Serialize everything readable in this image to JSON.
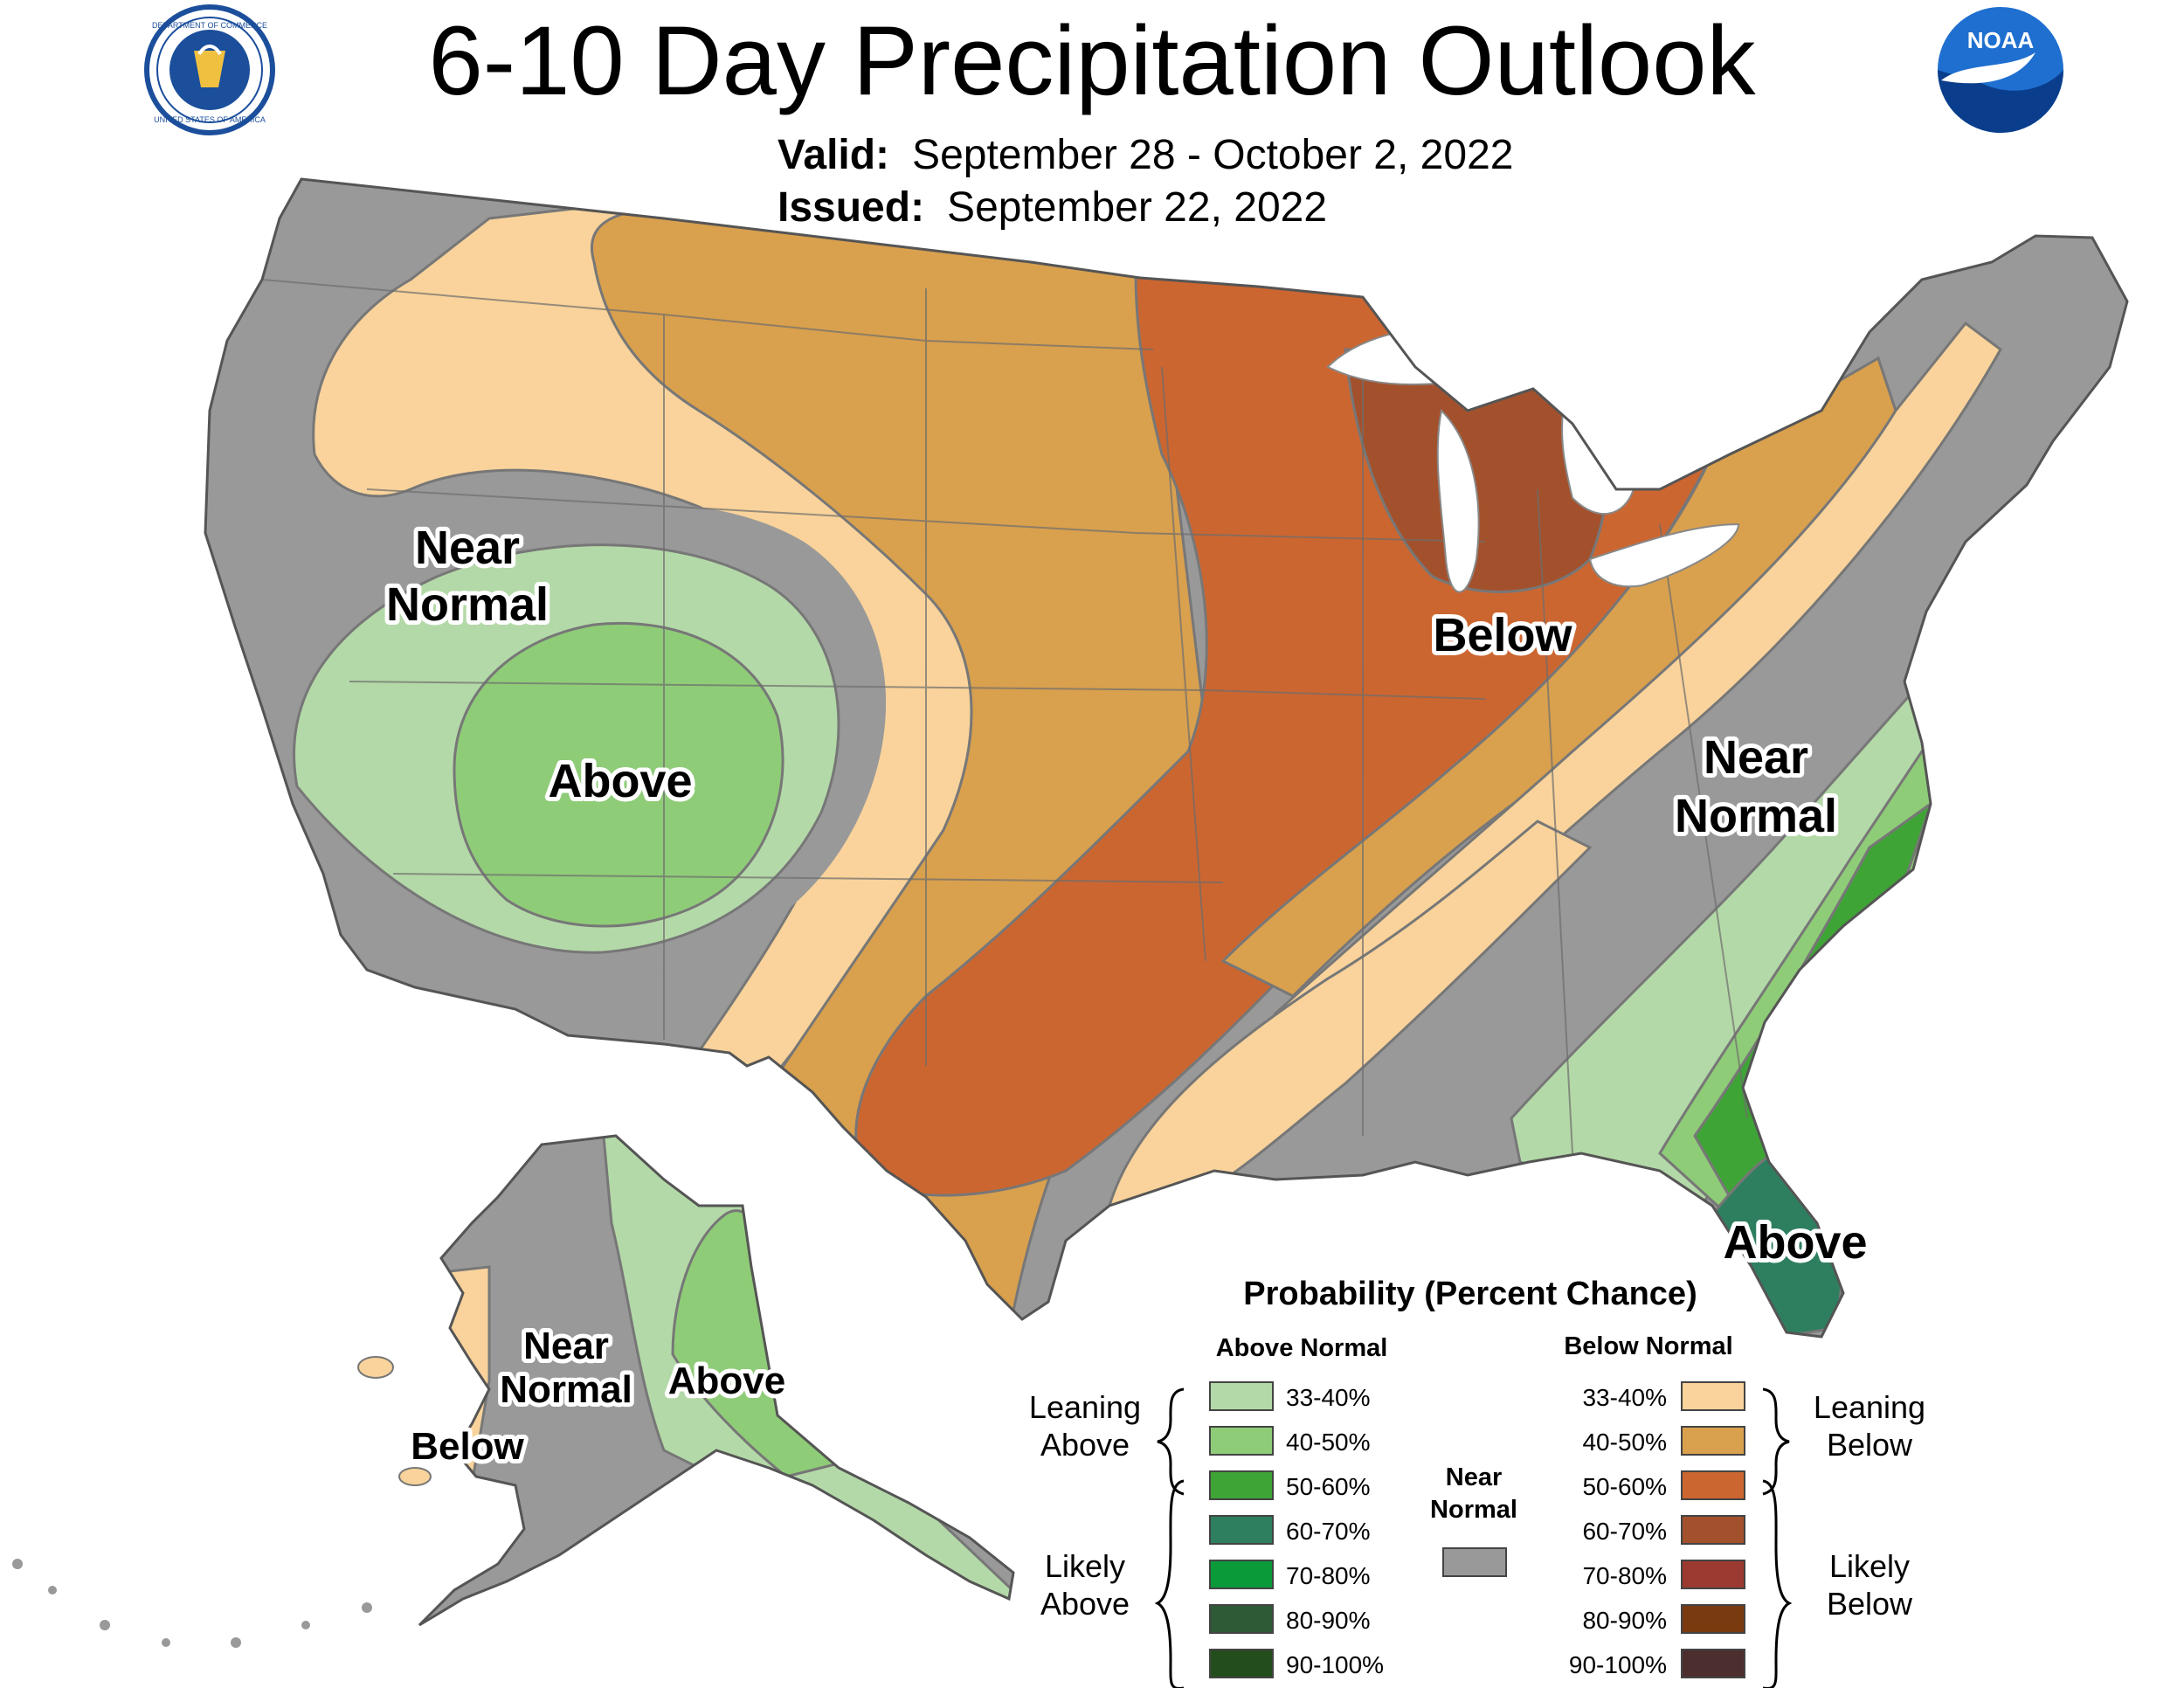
{
  "title": "6-10 Day Precipitation Outlook",
  "valid_label": "Valid:",
  "valid_value": "September 28 - October 2, 2022",
  "issued_label": "Issued:",
  "issued_value": "September 22, 2022",
  "logos": {
    "left_seal_text_top": "DEPARTMENT OF COMMERCE",
    "left_seal_text_bottom": "UNITED STATES OF AMERICA",
    "right_logo_text": "NOAA"
  },
  "map_labels": {
    "west_near_normal_1": "Near",
    "west_near_normal_2": "Normal",
    "west_above": "Above",
    "midwest_below": "Below",
    "east_near_normal_1": "Near",
    "east_near_normal_2": "Normal",
    "florida_above": "Above",
    "alaska_near_normal_1": "Near",
    "alaska_near_normal_2": "Normal",
    "alaska_above": "Above",
    "alaska_below": "Below"
  },
  "legend": {
    "title": "Probability (Percent Chance)",
    "above_header": "Above Normal",
    "below_header": "Below Normal",
    "near_header_1": "Near",
    "near_header_2": "Normal",
    "leaning_above_1": "Leaning",
    "leaning_above_2": "Above",
    "likely_above_1": "Likely",
    "likely_above_2": "Above",
    "leaning_below_1": "Leaning",
    "leaning_below_2": "Below",
    "likely_below_1": "Likely",
    "likely_below_2": "Below",
    "above_items": [
      {
        "label": "33-40%",
        "color": "#b4d9a8"
      },
      {
        "label": "40-50%",
        "color": "#8fcc78"
      },
      {
        "label": "50-60%",
        "color": "#3fa436"
      },
      {
        "label": "60-70%",
        "color": "#2e7f5f"
      },
      {
        "label": "70-80%",
        "color": "#0a9a3a"
      },
      {
        "label": "80-90%",
        "color": "#2e5a36"
      },
      {
        "label": "90-100%",
        "color": "#234d1c"
      }
    ],
    "below_items": [
      {
        "label": "33-40%",
        "color": "#f9d39b"
      },
      {
        "label": "40-50%",
        "color": "#d9a04e"
      },
      {
        "label": "50-60%",
        "color": "#cc6630"
      },
      {
        "label": "60-70%",
        "color": "#a3512c"
      },
      {
        "label": "70-80%",
        "color": "#9b3a30"
      },
      {
        "label": "80-90%",
        "color": "#7a3a10"
      },
      {
        "label": "90-100%",
        "color": "#4d2e2e"
      }
    ],
    "near_color": "#999999"
  },
  "colors": {
    "near_normal": "#999999",
    "leaning_above": "#b4d9a8",
    "above_40_50": "#8fcc78",
    "above_50_60": "#3fa436",
    "above_60_70": "#2e7f5f",
    "leaning_below": "#f9d39b",
    "below_40_50": "#d9a04e",
    "below_50_60": "#cc6630",
    "below_60_70": "#a3512c",
    "seal_blue": "#1b4e9b",
    "noaa_blue": "#1e6fd0"
  }
}
